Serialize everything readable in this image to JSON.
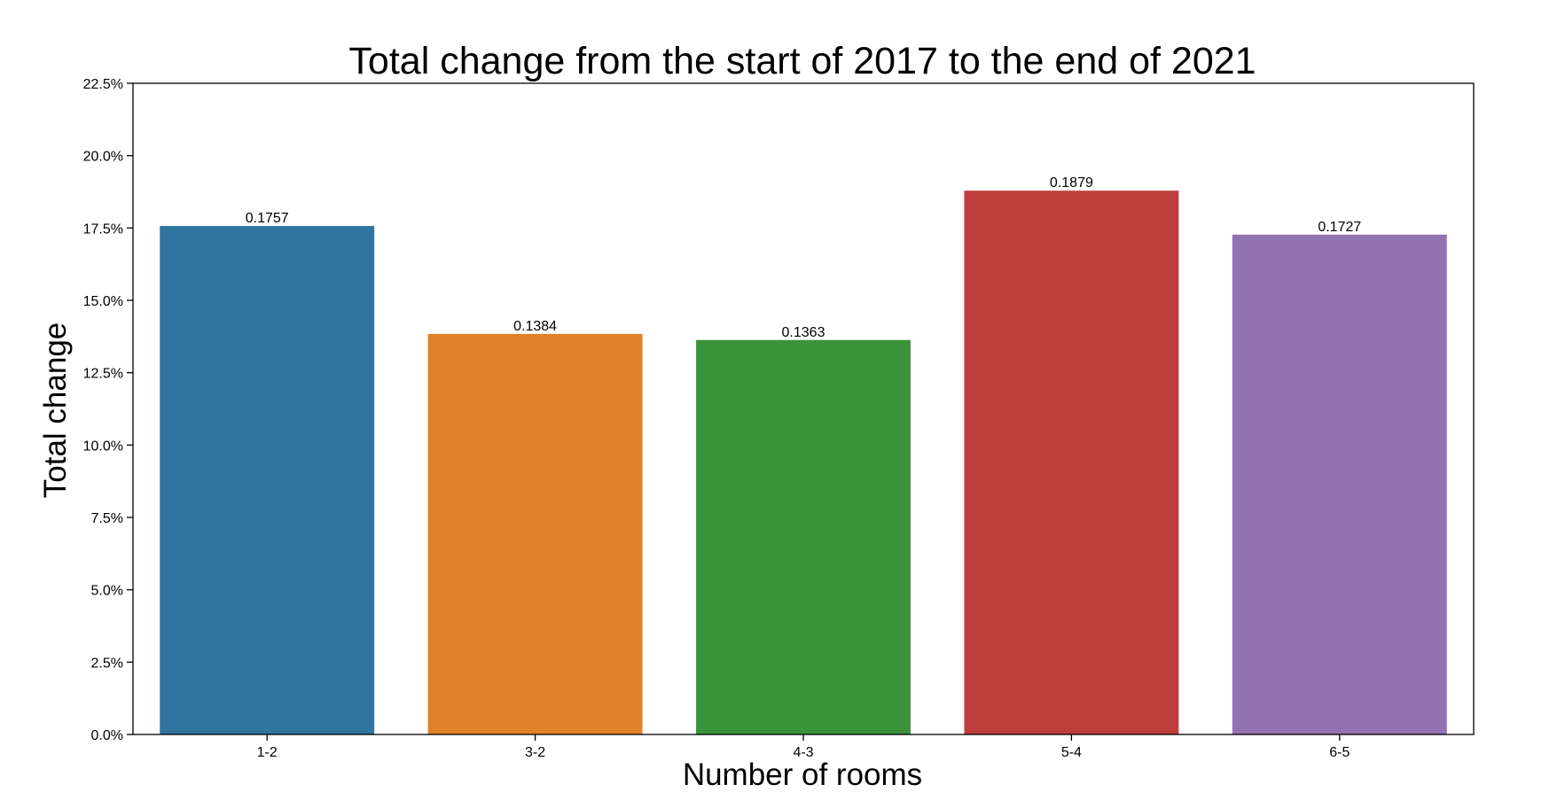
{
  "chart_data": {
    "type": "bar",
    "title": "Total change from the start of 2017 to the end of 2021",
    "xlabel": "Number of rooms",
    "ylabel": "Total change",
    "categories": [
      "1-2",
      "3-2",
      "4-3",
      "5-4",
      "6-5"
    ],
    "values": [
      0.1757,
      0.1384,
      0.1363,
      0.1879,
      0.1727
    ],
    "value_labels": [
      "0.1757",
      "0.1384",
      "0.1363",
      "0.1879",
      "0.1727"
    ],
    "colors": [
      "#3274a1",
      "#e1812c",
      "#3a923a",
      "#c03d3e",
      "#9372b2"
    ],
    "ylim": [
      0,
      0.225
    ],
    "yticks": [
      0,
      0.025,
      0.05,
      0.075,
      0.1,
      0.125,
      0.15,
      0.175,
      0.2,
      0.225
    ],
    "ytick_labels": [
      "0.0%",
      "2.5%",
      "5.0%",
      "7.5%",
      "10.0%",
      "12.5%",
      "15.0%",
      "17.5%",
      "20.0%",
      "22.5%"
    ],
    "grid": false,
    "legend": "none"
  }
}
